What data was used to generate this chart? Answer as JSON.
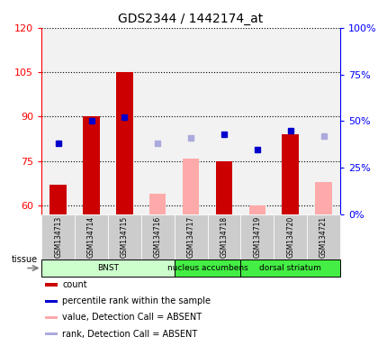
{
  "title": "GDS2344 / 1442174_at",
  "samples": [
    "GSM134713",
    "GSM134714",
    "GSM134715",
    "GSM134716",
    "GSM134717",
    "GSM134718",
    "GSM134719",
    "GSM134720",
    "GSM134721"
  ],
  "bar_values": [
    67,
    90,
    105,
    null,
    null,
    75,
    null,
    84,
    null
  ],
  "bar_absent_values": [
    null,
    null,
    null,
    64,
    76,
    null,
    60,
    null,
    68
  ],
  "dot_values": [
    38,
    50,
    52,
    null,
    null,
    43,
    35,
    45,
    null
  ],
  "dot_absent_values": [
    null,
    null,
    null,
    38,
    41,
    null,
    null,
    null,
    42
  ],
  "ylim_left": [
    57,
    120
  ],
  "ylim_right": [
    0,
    100
  ],
  "yticks_left": [
    60,
    75,
    90,
    105,
    120
  ],
  "yticks_right": [
    0,
    25,
    50,
    75,
    100
  ],
  "ytick_labels_left": [
    "60",
    "75",
    "90",
    "105",
    "120"
  ],
  "ytick_labels_right": [
    "0%",
    "25%",
    "50%",
    "75%",
    "100%"
  ],
  "bar_color": "#cc0000",
  "bar_absent_color": "#ffaaaa",
  "dot_color": "#0000cc",
  "dot_absent_color": "#aaaadd",
  "sample_bg_color": "#cccccc",
  "tissue_defs": [
    {
      "label": "BNST",
      "start": 0,
      "end": 3,
      "color": "#ccffcc"
    },
    {
      "label": "nucleus accumbens",
      "start": 4,
      "end": 5,
      "color": "#44ee44"
    },
    {
      "label": "dorsal striatum",
      "start": 6,
      "end": 8,
      "color": "#44ee44"
    }
  ],
  "legend_items": [
    {
      "color": "#cc0000",
      "label": "count"
    },
    {
      "color": "#0000cc",
      "label": "percentile rank within the sample"
    },
    {
      "color": "#ffaaaa",
      "label": "value, Detection Call = ABSENT"
    },
    {
      "color": "#aaaadd",
      "label": "rank, Detection Call = ABSENT"
    }
  ],
  "bar_width": 0.5
}
